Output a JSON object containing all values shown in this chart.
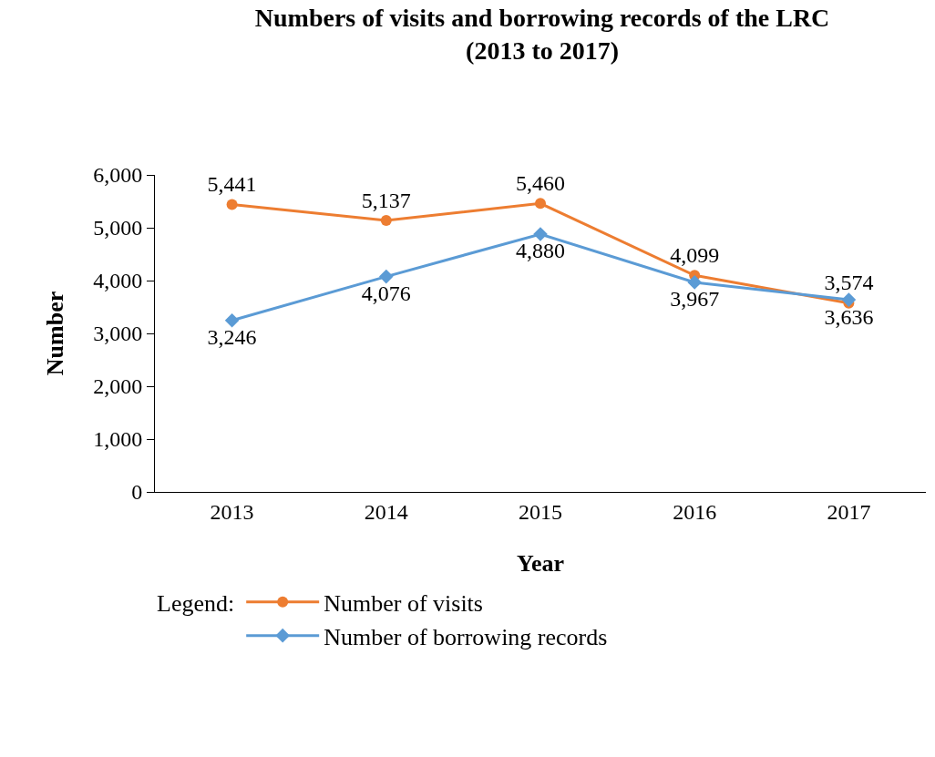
{
  "chart_data": {
    "type": "line",
    "title": "Numbers of visits and borrowing records of the LRC\n(2013 to 2017)",
    "xlabel": "Year",
    "ylabel": "Number",
    "legend_title": "Legend:",
    "categories": [
      "2013",
      "2014",
      "2015",
      "2016",
      "2017"
    ],
    "series": [
      {
        "name": "Number of visits",
        "color": "#ed7d31",
        "marker": "circle",
        "values": [
          5441,
          5137,
          5460,
          4099,
          3574
        ],
        "value_labels": [
          "5,441",
          "5,137",
          "5,460",
          "4,099",
          "3,574"
        ]
      },
      {
        "name": "Number of borrowing records",
        "color": "#5b9bd5",
        "marker": "diamond",
        "values": [
          3246,
          4076,
          4880,
          3967,
          3636
        ],
        "value_labels": [
          "3,246",
          "4,076",
          "4,880",
          "3,967",
          "3,636"
        ]
      }
    ],
    "ylim": [
      0,
      6000
    ],
    "yticks": [
      {
        "value": 0,
        "label": "0"
      },
      {
        "value": 1000,
        "label": "1,000"
      },
      {
        "value": 2000,
        "label": "2,000"
      },
      {
        "value": 3000,
        "label": "3,000"
      },
      {
        "value": 4000,
        "label": "4,000"
      },
      {
        "value": 5000,
        "label": "5,000"
      },
      {
        "value": 6000,
        "label": "6,000"
      }
    ],
    "grid": false,
    "legend": "bottom",
    "line_style": "solid"
  }
}
